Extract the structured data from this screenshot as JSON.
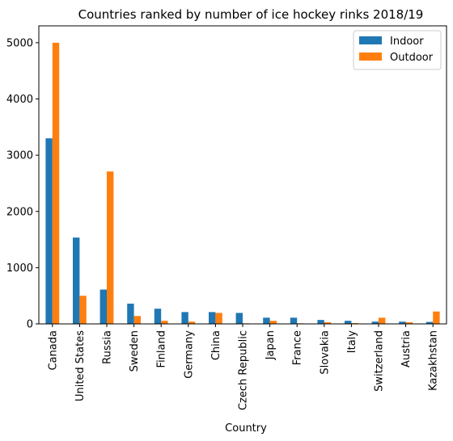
{
  "chart_data": {
    "type": "bar",
    "title": "Countries ranked by number of ice hockey rinks 2018/19",
    "xlabel": "Country",
    "ylabel": "",
    "ylim": [
      0,
      5300
    ],
    "yticks": [
      0,
      1000,
      2000,
      3000,
      4000,
      5000
    ],
    "grid": false,
    "legend_position": "top-right",
    "categories": [
      "Canada",
      "United States",
      "Russia",
      "Sweden",
      "Finland",
      "Germany",
      "China",
      "Czech Republic",
      "Japan",
      "France",
      "Slovakia",
      "Italy",
      "Switzerland",
      "Austria",
      "Kazakhstan"
    ],
    "series": [
      {
        "name": "Indoor",
        "color": "#1f77b4",
        "values": [
          3300,
          1535,
          610,
          360,
          270,
          210,
          210,
          195,
          110,
          110,
          70,
          55,
          40,
          40,
          35
        ]
      },
      {
        "name": "Outdoor",
        "color": "#ff7f0e",
        "values": [
          5000,
          500,
          2710,
          140,
          55,
          40,
          195,
          10,
          55,
          10,
          30,
          15,
          110,
          30,
          220
        ]
      }
    ]
  }
}
